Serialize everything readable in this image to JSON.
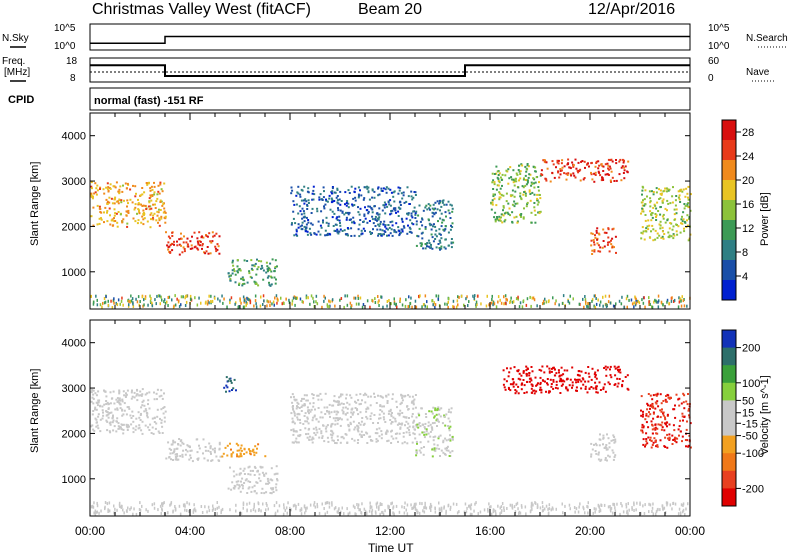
{
  "header": {
    "title": "Christmas Valley West (fitACF)",
    "beam": "Beam 20",
    "date": "12/Apr/2016"
  },
  "top_panels": {
    "nsky_label": "N.Sky",
    "nsearch_label": "N.Search",
    "nsky_ticks": [
      "10^5",
      "10^0"
    ],
    "nsearch_ticks": [
      "10^5",
      "10^0"
    ],
    "freq_label": "Freq.",
    "freq_unit": "[MHz]",
    "freq_ticks": [
      "18",
      "8"
    ],
    "nave_label": "Nave",
    "nave_ticks": [
      "60",
      "0"
    ],
    "cpid_label": "CPID",
    "cpid_text": "normal (fast) -151 RF"
  },
  "colors": {
    "power": [
      "#0020d0",
      "#1a4fa8",
      "#2f7f84",
      "#3c9a55",
      "#8cc23a",
      "#e8c423",
      "#f08a1c",
      "#e83a1a",
      "#d80e0e"
    ],
    "velocity": [
      "#1232b8",
      "#2d6f6a",
      "#3aa03a",
      "#86cf3c",
      "#c8c8c8",
      "#c8c8c8",
      "#f2a020",
      "#f07818",
      "#e84020",
      "#e00000"
    ]
  },
  "chart_data": [
    {
      "type": "line",
      "name": "N.Sky / N.Search",
      "x": [
        "00:00",
        "03:00",
        "15:00",
        "24:00"
      ],
      "series": [
        {
          "name": "N.Sky",
          "values": [
            20,
            400,
            400,
            20
          ]
        }
      ],
      "yscale": "log",
      "ylim": [
        1,
        100000
      ]
    },
    {
      "type": "line",
      "name": "Freq / Nave",
      "x": [
        "00:00",
        "03:00",
        "15:00",
        "24:00"
      ],
      "series": [
        {
          "name": "Freq.",
          "values": [
            15,
            10.5,
            15,
            15
          ]
        },
        {
          "name": "Nave",
          "values": [
            25,
            25,
            25,
            25
          ]
        }
      ],
      "ylim_left": [
        8,
        18
      ],
      "ylim_right": [
        0,
        60
      ]
    },
    {
      "type": "heatmap",
      "name": "Power",
      "xlabel": "Time UT",
      "ylabel": "Slant Range [km]",
      "x_ticks": [
        "00:00",
        "04:00",
        "08:00",
        "12:00",
        "16:00",
        "20:00",
        "00:00"
      ],
      "y_ticks": [
        1000,
        2000,
        3000,
        4000
      ],
      "xlim_hours": [
        0,
        24
      ],
      "ylim": [
        180,
        4500
      ],
      "colorbar_label": "Power [dB]",
      "colorbar_ticks": [
        4,
        8,
        12,
        16,
        20,
        24,
        28
      ],
      "colorbar_range": [
        0,
        30
      ],
      "regions": [
        {
          "t0": 0.0,
          "t1": 3.0,
          "r0": 2000,
          "r1": 3000,
          "level": 20
        },
        {
          "t0": 3.0,
          "t1": 5.2,
          "r0": 1400,
          "r1": 1900,
          "level": 26
        },
        {
          "t0": 5.5,
          "t1": 7.5,
          "r0": 700,
          "r1": 1300,
          "level": 12
        },
        {
          "t0": 8.0,
          "t1": 13.0,
          "r0": 1800,
          "r1": 2900,
          "level": 6
        },
        {
          "t0": 13.0,
          "t1": 14.5,
          "r0": 1500,
          "r1": 2600,
          "level": 8
        },
        {
          "t0": 16.0,
          "t1": 18.0,
          "r0": 2100,
          "r1": 3400,
          "level": 14
        },
        {
          "t0": 18.0,
          "t1": 21.5,
          "r0": 3000,
          "r1": 3500,
          "level": 26
        },
        {
          "t0": 20.0,
          "t1": 21.0,
          "r0": 1400,
          "r1": 2000,
          "level": 24
        },
        {
          "t0": 22.0,
          "t1": 24.0,
          "r0": 1700,
          "r1": 2900,
          "level": 16
        }
      ]
    },
    {
      "type": "heatmap",
      "name": "Velocity",
      "xlabel": "Time UT",
      "ylabel": "Slant Range [km]",
      "x_ticks": [
        "00:00",
        "04:00",
        "08:00",
        "12:00",
        "16:00",
        "20:00",
        "00:00"
      ],
      "y_ticks": [
        1000,
        2000,
        3000,
        4000
      ],
      "xlim_hours": [
        0,
        24
      ],
      "ylim": [
        180,
        4500
      ],
      "colorbar_label": "Velocity [m s^-1]",
      "colorbar_ticks": [
        200,
        100,
        50,
        15,
        -15,
        -50,
        -100,
        -200
      ],
      "colorbar_range": [
        -250,
        250
      ],
      "regions": [
        {
          "t0": 0.0,
          "t1": 3.0,
          "r0": 2000,
          "r1": 3000,
          "level": 0
        },
        {
          "t0": 3.0,
          "t1": 5.2,
          "r0": 1400,
          "r1": 1900,
          "level": 0
        },
        {
          "t0": 5.2,
          "t1": 7.0,
          "r0": 1500,
          "r1": 1800,
          "level": -90
        },
        {
          "t0": 5.5,
          "t1": 7.5,
          "r0": 700,
          "r1": 1300,
          "level": 0
        },
        {
          "t0": 5.3,
          "t1": 5.8,
          "r0": 2900,
          "r1": 3300,
          "level": 200
        },
        {
          "t0": 8.0,
          "t1": 13.0,
          "r0": 1800,
          "r1": 2900,
          "level": 0
        },
        {
          "t0": 13.0,
          "t1": 14.5,
          "r0": 1500,
          "r1": 2600,
          "level": 40
        },
        {
          "t0": 16.5,
          "t1": 21.5,
          "r0": 2900,
          "r1": 3500,
          "level": -220
        },
        {
          "t0": 20.0,
          "t1": 21.0,
          "r0": 1400,
          "r1": 2000,
          "level": 0
        },
        {
          "t0": 22.0,
          "t1": 24.0,
          "r0": 1700,
          "r1": 2900,
          "level": -200
        }
      ]
    }
  ]
}
